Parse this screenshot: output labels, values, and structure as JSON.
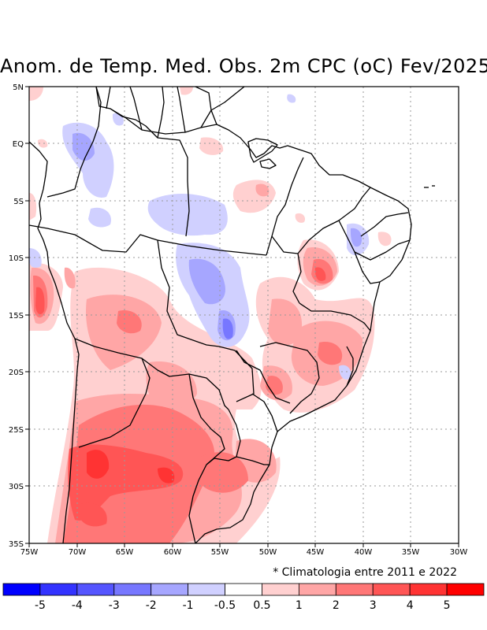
{
  "title": "Anom. de Temp. Med. Obs. 2m CPC (oC) Fev/2025",
  "footnote": "* Climatologia entre 2011 e 2022",
  "axes": {
    "lon_labels": [
      "75W",
      "70W",
      "65W",
      "60W",
      "55W",
      "50W",
      "45W",
      "40W",
      "35W",
      "30W"
    ],
    "lat_labels": [
      "5N",
      "EQ",
      "5S",
      "10S",
      "15S",
      "20S",
      "25S",
      "30S",
      "35S"
    ]
  },
  "colorbar": {
    "labels": [
      "-5",
      "-4",
      "-3",
      "-2",
      "-1",
      "-0.5",
      "0.5",
      "1",
      "2",
      "3",
      "4",
      "5"
    ],
    "colors": [
      "#0000ff",
      "#3333ff",
      "#5555ff",
      "#7777ff",
      "#a6a6ff",
      "#d0d0ff",
      "#ffffff",
      "#ffd0d0",
      "#ffa6a6",
      "#ff7777",
      "#ff5555",
      "#ff3333",
      "#ff0000"
    ]
  },
  "map_data": {
    "lon_range": [
      -75,
      -30
    ],
    "lat_range": [
      -35,
      5
    ],
    "region": "Brasil / America do Sul",
    "variable": "Anomalia de temperatura media a 2m (oC)"
  }
}
